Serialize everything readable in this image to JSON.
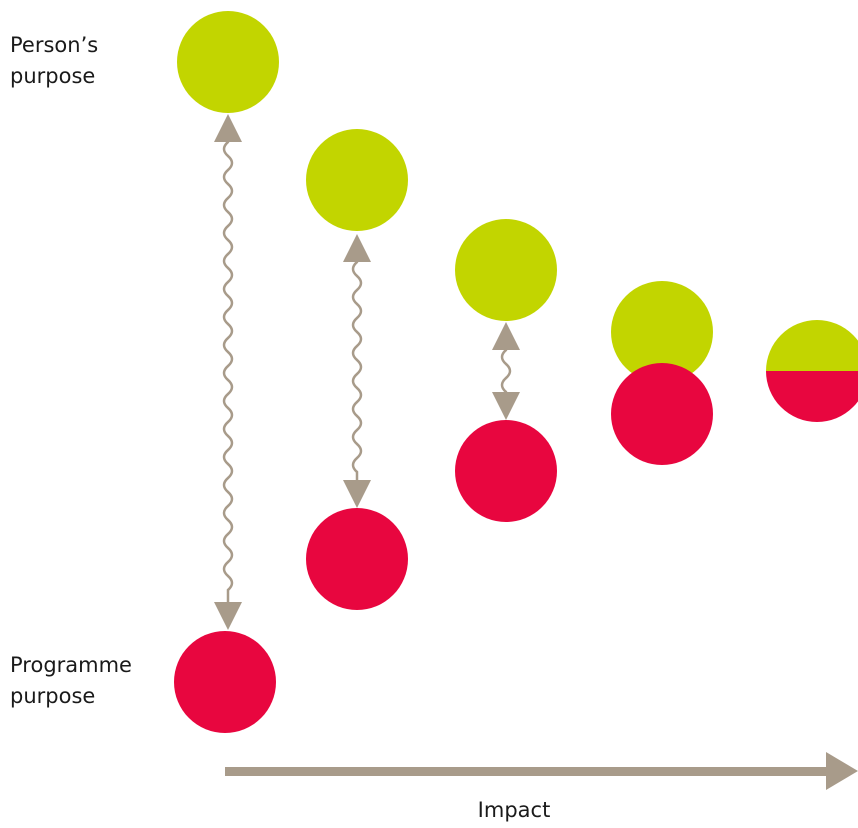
{
  "labels": {
    "person_purpose": "Person’s\npurpose",
    "programme_purpose": "Programme\npurpose",
    "impact": "Impact"
  },
  "colors": {
    "person_purpose": "#c2d500",
    "programme_purpose": "#e8063f",
    "connector": "#a89b8a",
    "impact_arrow": "#a89b8a",
    "text": "#1a1a1a"
  },
  "diagram": {
    "stages": 5,
    "description_items": [
      "person-purpose-circle",
      "programme-purpose-circle",
      "wavy-double-arrow"
    ]
  }
}
